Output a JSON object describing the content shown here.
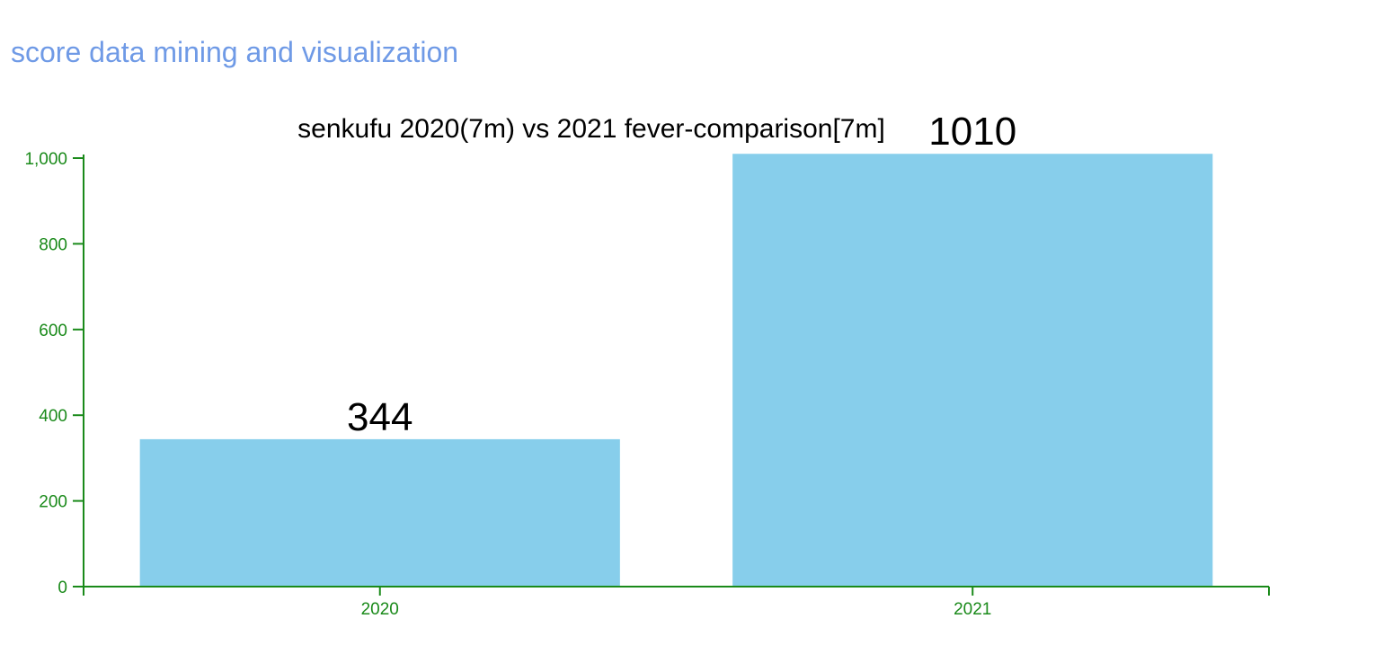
{
  "header": {
    "title": "score data mining and visualization"
  },
  "colors": {
    "header_title": "#6f9ae6",
    "bar_fill": "#87ceeb",
    "axis": "#1a8a1a",
    "text": "#000000"
  },
  "chart_data": {
    "type": "bar",
    "title": "senkufu 2020(7m) vs 2021 fever-comparison[7m]",
    "categories": [
      "2020",
      "2021"
    ],
    "values": [
      344,
      1010
    ],
    "data_labels": [
      "344",
      "1010"
    ],
    "ylim": [
      0,
      1000
    ],
    "yticks": [
      0,
      200,
      400,
      600,
      800,
      1000
    ],
    "ytick_labels": [
      "0",
      "200",
      "400",
      "600",
      "800",
      "1,000"
    ],
    "xlabel": "",
    "ylabel": "",
    "grid": false,
    "legend": "none"
  }
}
